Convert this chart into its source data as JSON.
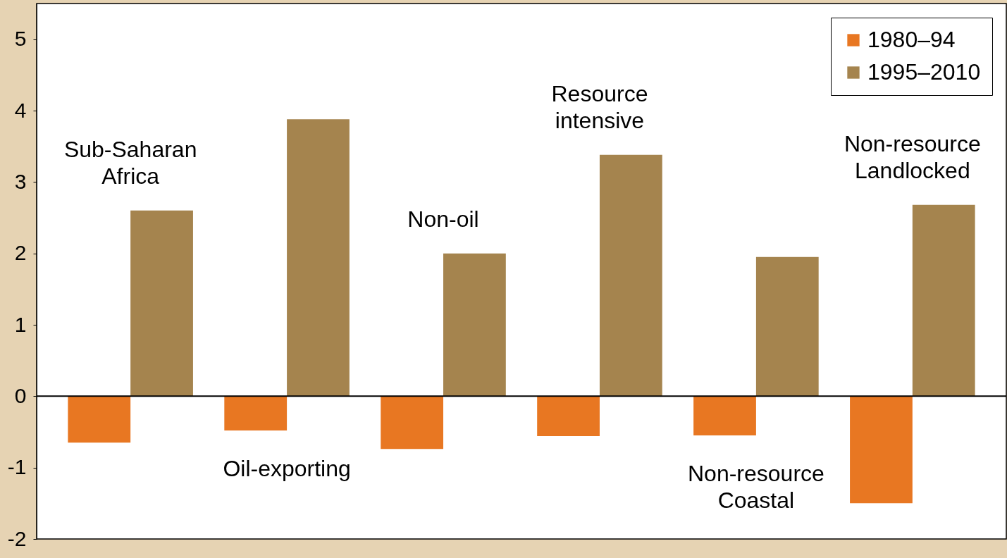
{
  "chart_data": {
    "type": "bar",
    "categories": [
      "Sub-Saharan Africa",
      "Oil-exporting",
      "Non-oil",
      "Resource intensive",
      "Non-resource Coastal",
      "Non-resource Landlocked"
    ],
    "series": [
      {
        "name": "1980–94",
        "color": "#e87722",
        "values": [
          -0.65,
          -0.48,
          -0.74,
          -0.56,
          -0.55,
          -1.5
        ]
      },
      {
        "name": "1995–2010",
        "color": "#a5844e",
        "values": [
          2.6,
          3.88,
          2.0,
          3.38,
          1.95,
          2.68
        ]
      }
    ],
    "ylim": [
      -2,
      5.5
    ],
    "yticks": [
      -2,
      -1,
      0,
      1,
      2,
      3,
      4,
      5
    ],
    "legend": "top right"
  }
}
